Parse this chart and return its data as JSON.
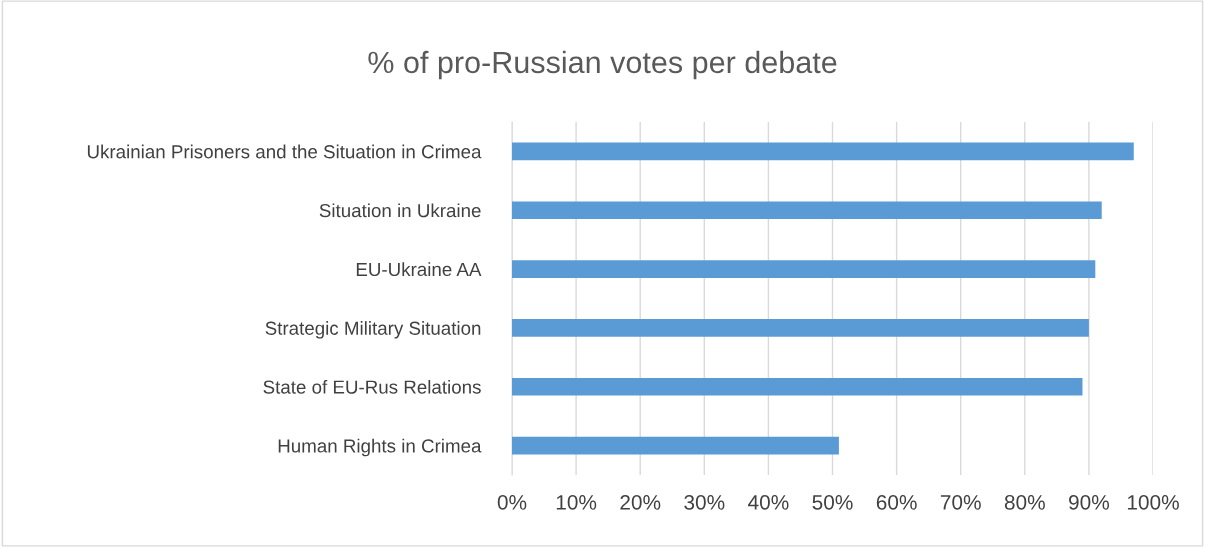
{
  "chart_data": {
    "type": "bar",
    "orientation": "horizontal",
    "title": "% of pro-Russian votes per debate",
    "categories": [
      "Ukrainian Prisoners and the Situation in Crimea",
      "Situation in Ukraine",
      "EU-Ukraine AA",
      "Strategic Military Situation",
      "State of EU-Rus Relations",
      "Human Rights in Crimea"
    ],
    "values": [
      97,
      92,
      91,
      90,
      89,
      51
    ],
    "color": "#5b9bd5",
    "xlim": [
      0,
      100
    ],
    "xticks": [
      {
        "value": 0,
        "label": "0%"
      },
      {
        "value": 10,
        "label": "10%"
      },
      {
        "value": 20,
        "label": "20%"
      },
      {
        "value": 30,
        "label": "30%"
      },
      {
        "value": 40,
        "label": "40%"
      },
      {
        "value": 50,
        "label": "50%"
      },
      {
        "value": 60,
        "label": "60%"
      },
      {
        "value": 70,
        "label": "70%"
      },
      {
        "value": 80,
        "label": "80%"
      },
      {
        "value": 90,
        "label": "90%"
      },
      {
        "value": 100,
        "label": "100%"
      }
    ],
    "grid": "x",
    "legend": false
  }
}
